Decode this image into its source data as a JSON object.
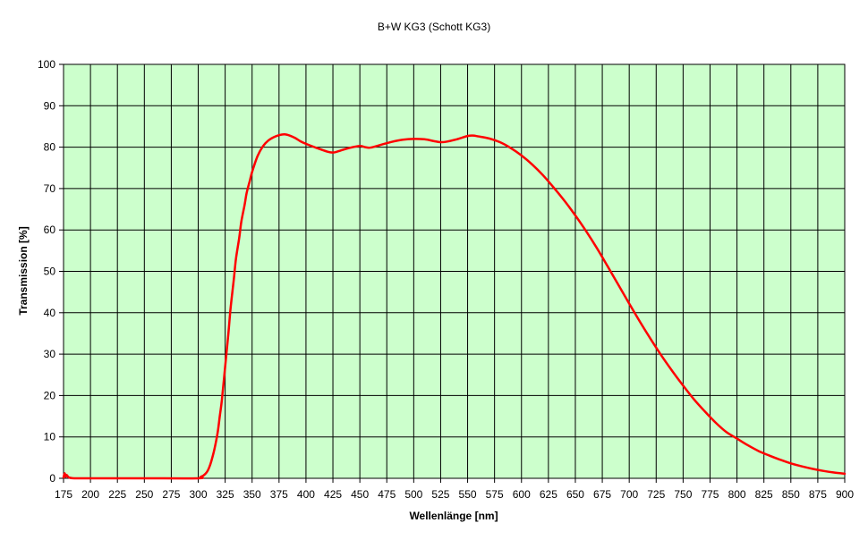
{
  "chart_data": {
    "type": "line",
    "title": "B+W KG3 (Schott KG3)",
    "xlabel": "Wellenlänge [nm]",
    "ylabel": "Transmission [%]",
    "xlim": [
      175,
      900
    ],
    "ylim": [
      0,
      100
    ],
    "x_ticks": [
      175,
      200,
      225,
      250,
      275,
      300,
      325,
      350,
      375,
      400,
      425,
      450,
      475,
      500,
      525,
      550,
      575,
      600,
      625,
      650,
      675,
      700,
      725,
      750,
      775,
      800,
      825,
      850,
      875,
      900
    ],
    "y_ticks": [
      0,
      10,
      20,
      30,
      40,
      50,
      60,
      70,
      80,
      90,
      100
    ],
    "grid": true,
    "legend": "none",
    "colors": {
      "plot_background": "#ccffcc",
      "line": "#ff0000",
      "grid": "#000000"
    },
    "series": [
      {
        "x": [
          175,
          176,
          177,
          178,
          180,
          185,
          200,
          250,
          300,
          302,
          305,
          308,
          310,
          312,
          315,
          318,
          320,
          322,
          325,
          328,
          330,
          333,
          335,
          338,
          340,
          343,
          345,
          348,
          350,
          355,
          360,
          365,
          370,
          375,
          380,
          385,
          390,
          395,
          400,
          410,
          420,
          425,
          430,
          440,
          450,
          455,
          460,
          470,
          480,
          490,
          500,
          510,
          520,
          525,
          530,
          540,
          550,
          555,
          560,
          570,
          580,
          590,
          600,
          610,
          620,
          630,
          640,
          650,
          660,
          670,
          680,
          690,
          700,
          710,
          720,
          730,
          740,
          750,
          760,
          770,
          780,
          790,
          800,
          810,
          820,
          830,
          840,
          850,
          860,
          870,
          880,
          890,
          900
        ],
        "values": [
          0.2,
          1.2,
          0.4,
          0.8,
          0.2,
          0,
          0,
          0,
          0,
          0.3,
          0.7,
          1.5,
          2.5,
          4,
          7,
          11,
          15,
          19,
          27,
          35,
          41,
          48,
          53,
          58,
          62,
          66,
          69,
          72,
          74,
          77.8,
          80.2,
          81.6,
          82.4,
          82.9,
          83.1,
          82.8,
          82.2,
          81.4,
          80.8,
          79.8,
          78.9,
          78.7,
          79.0,
          79.8,
          80.3,
          80.0,
          79.9,
          80.6,
          81.3,
          81.8,
          82.0,
          81.9,
          81.4,
          81.2,
          81.3,
          81.9,
          82.7,
          82.8,
          82.6,
          82.1,
          81.2,
          79.8,
          78.0,
          75.8,
          73.2,
          70.2,
          67.0,
          63.5,
          59.7,
          55.6,
          51.2,
          46.7,
          42.2,
          37.8,
          33.6,
          29.6,
          25.9,
          22.4,
          19.1,
          16.2,
          13.5,
          11.2,
          9.6,
          8.0,
          6.6,
          5.5,
          4.5,
          3.6,
          2.9,
          2.3,
          1.8,
          1.4,
          1.1
        ]
      }
    ]
  }
}
